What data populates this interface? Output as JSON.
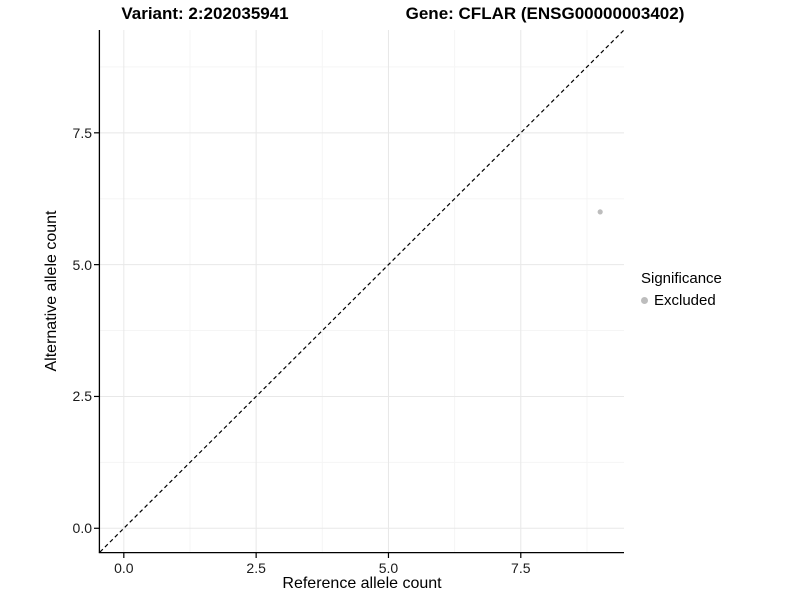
{
  "chart_data": {
    "type": "scatter",
    "title_left": "Variant: 2:202035941",
    "title_right": "Gene: CFLAR (ENSG00000003402)",
    "xlabel": "Reference allele count",
    "ylabel": "Alternative allele count",
    "xlim": [
      -0.45,
      9.45
    ],
    "ylim": [
      -0.45,
      9.45
    ],
    "x_ticks": {
      "values": [
        0,
        2.5,
        5,
        7.5
      ],
      "labels": [
        "0.0",
        "2.5",
        "5.0",
        "7.5"
      ]
    },
    "y_ticks": {
      "values": [
        0,
        2.5,
        5,
        7.5
      ],
      "labels": [
        "0.0",
        "2.5",
        "5.0",
        "7.5"
      ]
    },
    "minor_ticks": [
      1.25,
      3.75,
      6.25,
      8.75
    ],
    "grid": true,
    "series": [
      {
        "name": "Excluded",
        "color": "#bdbdbd",
        "points": [
          [
            9,
            6
          ]
        ]
      }
    ],
    "reference_line": {
      "type": "identity",
      "style": "dashed",
      "color": "#000000"
    },
    "legend": {
      "title": "Significance",
      "position": "right",
      "items": [
        {
          "label": "Excluded",
          "color": "#bdbdbd"
        }
      ]
    },
    "colors": {
      "background": "#ffffff",
      "grid_major": "#e8e8e8",
      "grid_minor": "#f5f5f5",
      "axis": "#000000",
      "text": "#000000"
    }
  }
}
